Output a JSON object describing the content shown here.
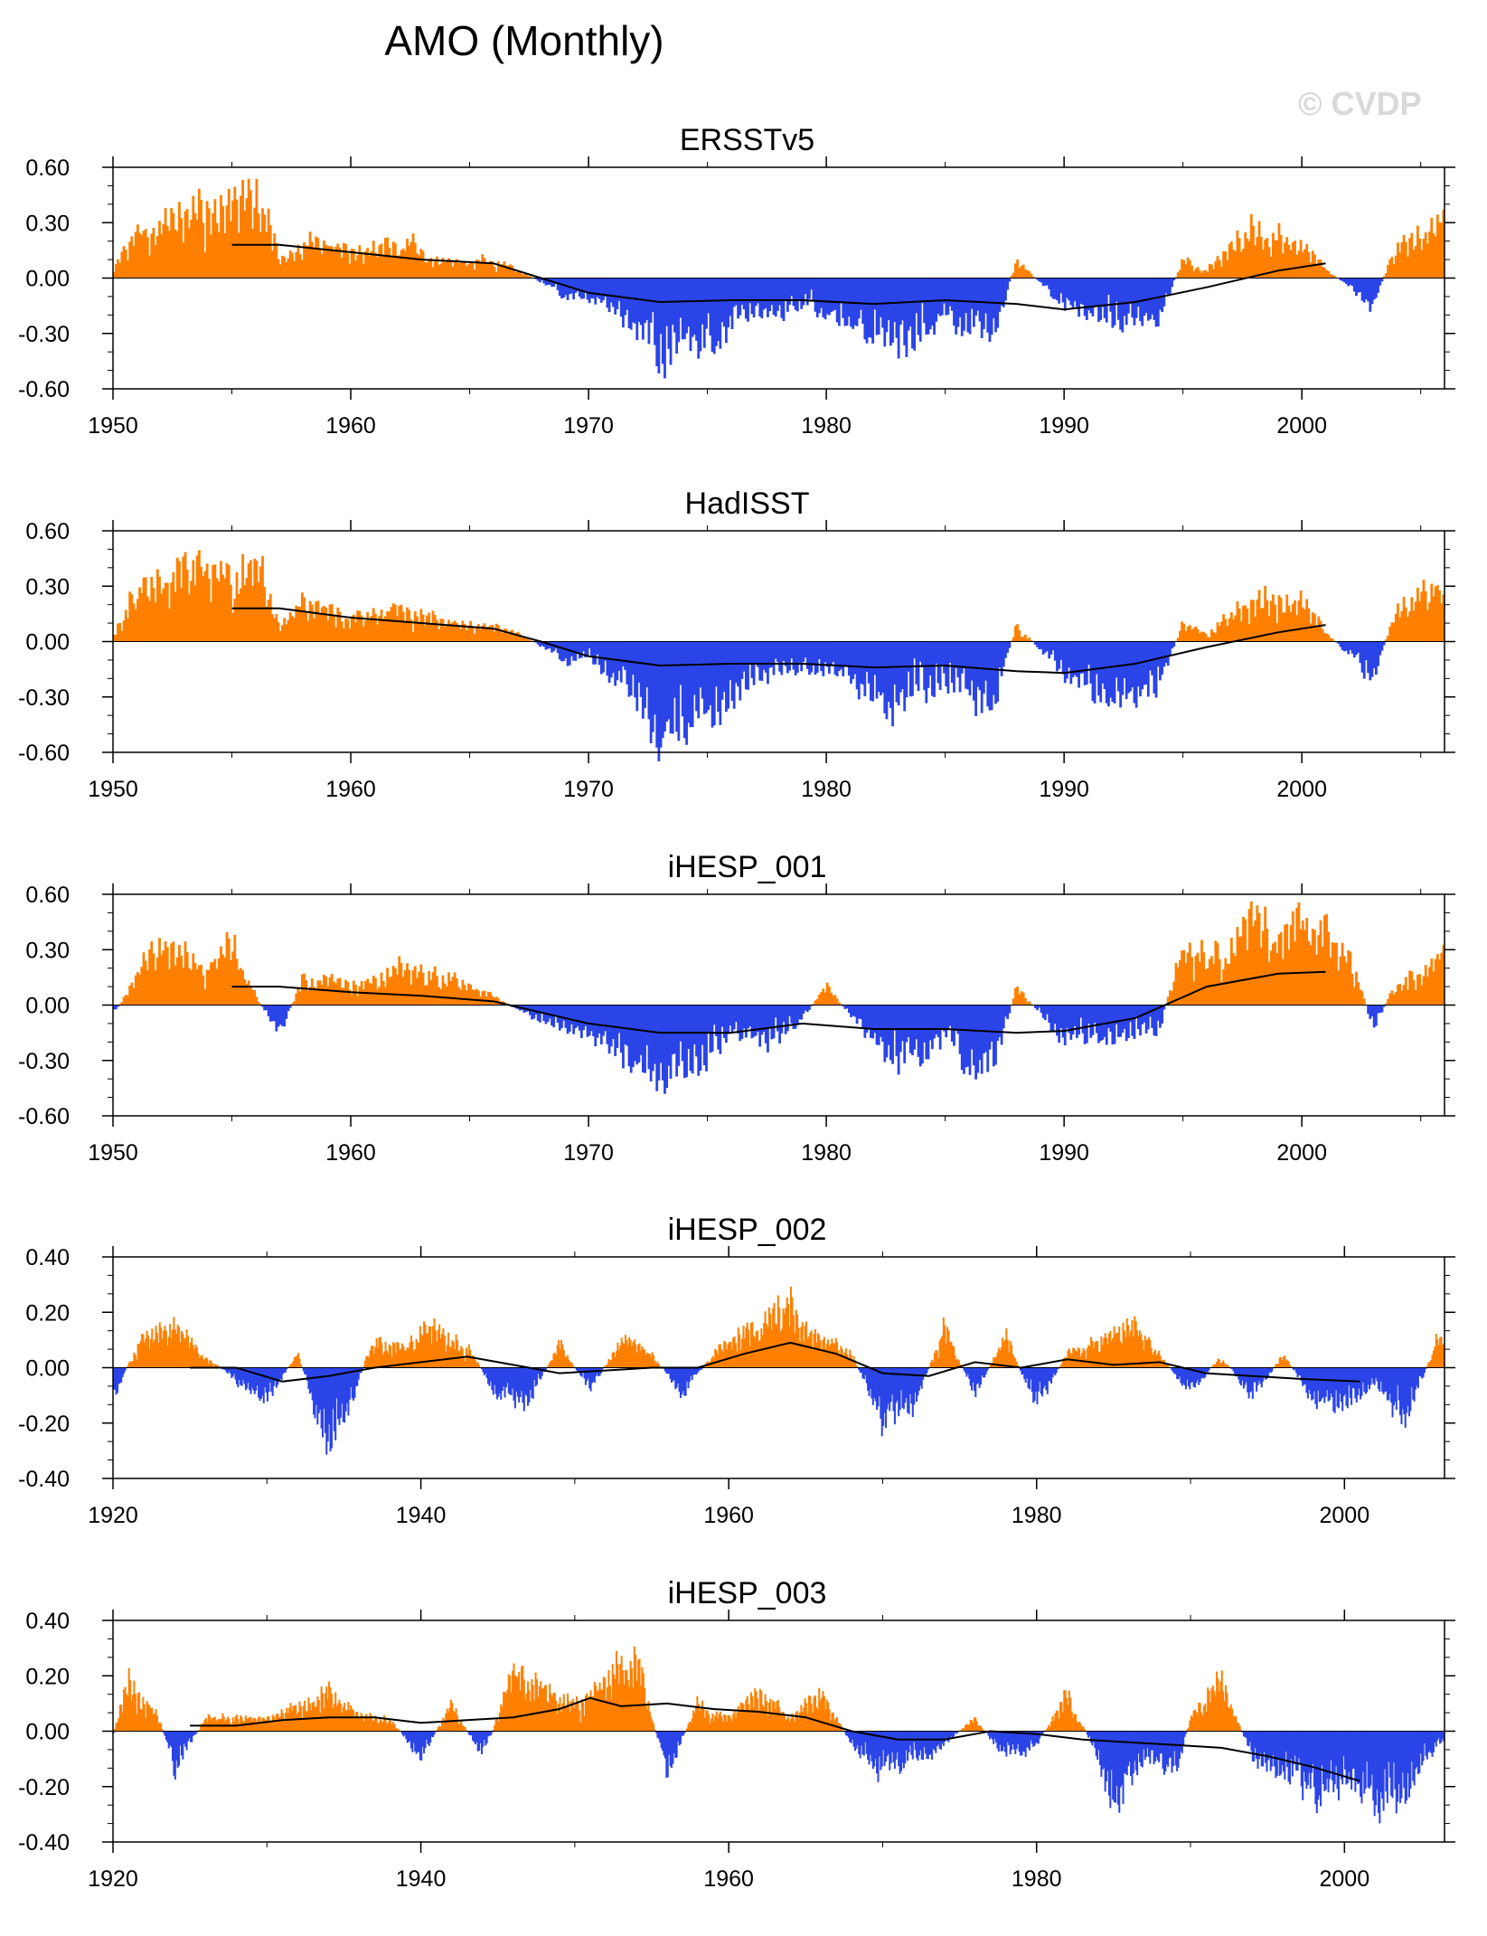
{
  "title": "AMO (Monthly)",
  "watermark": "© CVDP",
  "colors": {
    "positive": "#ff8000",
    "negative": "#2b44e8",
    "line": "#000000",
    "frame": "#000000"
  },
  "chart_data": [
    {
      "type": "area",
      "title": "ERSSTv5",
      "xlim": [
        1950,
        2006
      ],
      "ylim": [
        -0.6,
        0.6
      ],
      "yticks": [
        0.6,
        0.3,
        0.0,
        -0.3,
        -0.6
      ],
      "ytick_labels": [
        "0.60",
        "0.30",
        "0.00",
        "-0.30",
        "-0.60"
      ],
      "xticks": [
        1950,
        1960,
        1970,
        1980,
        1990,
        2000
      ],
      "xtick_labels": [
        "1950",
        "1960",
        "1970",
        "1980",
        "1990",
        "2000"
      ],
      "series_seed": 11,
      "anomaly_envelope": [
        [
          1950,
          0.05
        ],
        [
          1951,
          0.25
        ],
        [
          1953,
          0.35
        ],
        [
          1955,
          0.45
        ],
        [
          1956,
          0.55
        ],
        [
          1957,
          0.1
        ],
        [
          1958,
          0.2
        ],
        [
          1960,
          0.15
        ],
        [
          1962,
          0.2
        ],
        [
          1964,
          0.1
        ],
        [
          1966,
          0.1
        ],
        [
          1967,
          0.05
        ],
        [
          1969,
          -0.1
        ],
        [
          1970,
          -0.1
        ],
        [
          1972,
          -0.25
        ],
        [
          1973,
          -0.45
        ],
        [
          1975,
          -0.35
        ],
        [
          1977,
          -0.2
        ],
        [
          1979,
          -0.15
        ],
        [
          1981,
          -0.2
        ],
        [
          1983,
          -0.4
        ],
        [
          1985,
          -0.2
        ],
        [
          1987,
          -0.3
        ],
        [
          1988,
          0.1
        ],
        [
          1990,
          -0.15
        ],
        [
          1992,
          -0.25
        ],
        [
          1994,
          -0.2
        ],
        [
          1995,
          0.1
        ],
        [
          1996,
          0.05
        ],
        [
          1998,
          0.3
        ],
        [
          2000,
          0.2
        ],
        [
          2001,
          0.05
        ],
        [
          2003,
          -0.15
        ],
        [
          2004,
          0.2
        ],
        [
          2006,
          0.3
        ]
      ],
      "smoothed": {
        "x": [
          1955,
          1957,
          1960,
          1963,
          1966,
          1968,
          1970,
          1973,
          1976,
          1979,
          1982,
          1985,
          1988,
          1990,
          1993,
          1996,
          1999,
          2001
        ],
        "y": [
          0.18,
          0.18,
          0.14,
          0.1,
          0.08,
          0.0,
          -0.08,
          -0.13,
          -0.12,
          -0.12,
          -0.14,
          -0.12,
          -0.14,
          -0.17,
          -0.13,
          -0.05,
          0.04,
          0.08
        ]
      }
    },
    {
      "type": "area",
      "title": "HadISST",
      "xlim": [
        1950,
        2006
      ],
      "ylim": [
        -0.6,
        0.6
      ],
      "yticks": [
        0.6,
        0.3,
        0.0,
        -0.3,
        -0.6
      ],
      "ytick_labels": [
        "0.60",
        "0.30",
        "0.00",
        "-0.30",
        "-0.60"
      ],
      "xticks": [
        1950,
        1960,
        1970,
        1980,
        1990,
        2000
      ],
      "xtick_labels": [
        "1950",
        "1960",
        "1970",
        "1980",
        "1990",
        "2000"
      ],
      "series_seed": 23,
      "anomaly_envelope": [
        [
          1950,
          0.05
        ],
        [
          1951,
          0.3
        ],
        [
          1953,
          0.35
        ],
        [
          1955,
          0.4
        ],
        [
          1956,
          0.5
        ],
        [
          1957,
          0.1
        ],
        [
          1958,
          0.2
        ],
        [
          1960,
          0.15
        ],
        [
          1962,
          0.2
        ],
        [
          1964,
          0.1
        ],
        [
          1966,
          0.1
        ],
        [
          1967,
          0.05
        ],
        [
          1969,
          -0.1
        ],
        [
          1970,
          -0.1
        ],
        [
          1972,
          -0.3
        ],
        [
          1973,
          -0.5
        ],
        [
          1975,
          -0.4
        ],
        [
          1977,
          -0.2
        ],
        [
          1979,
          -0.15
        ],
        [
          1981,
          -0.2
        ],
        [
          1983,
          -0.4
        ],
        [
          1985,
          -0.25
        ],
        [
          1987,
          -0.35
        ],
        [
          1988,
          0.1
        ],
        [
          1990,
          -0.2
        ],
        [
          1992,
          -0.3
        ],
        [
          1994,
          -0.25
        ],
        [
          1995,
          0.1
        ],
        [
          1996,
          0.05
        ],
        [
          1998,
          0.25
        ],
        [
          2000,
          0.25
        ],
        [
          2001,
          0.05
        ],
        [
          2003,
          -0.2
        ],
        [
          2004,
          0.2
        ],
        [
          2006,
          0.3
        ]
      ],
      "smoothed": {
        "x": [
          1955,
          1957,
          1960,
          1963,
          1966,
          1968,
          1970,
          1973,
          1976,
          1979,
          1982,
          1985,
          1988,
          1990,
          1993,
          1996,
          1999,
          2001
        ],
        "y": [
          0.18,
          0.18,
          0.13,
          0.1,
          0.07,
          0.0,
          -0.08,
          -0.13,
          -0.12,
          -0.12,
          -0.14,
          -0.13,
          -0.16,
          -0.17,
          -0.12,
          -0.03,
          0.05,
          0.09
        ]
      }
    },
    {
      "type": "area",
      "title": "iHESP_001",
      "xlim": [
        1950,
        2006
      ],
      "ylim": [
        -0.6,
        0.6
      ],
      "yticks": [
        0.6,
        0.3,
        0.0,
        -0.3,
        -0.6
      ],
      "ytick_labels": [
        "0.60",
        "0.30",
        "0.00",
        "-0.30",
        "-0.60"
      ],
      "xticks": [
        1950,
        1960,
        1970,
        1980,
        1990,
        2000
      ],
      "xtick_labels": [
        "1950",
        "1960",
        "1970",
        "1980",
        "1990",
        "2000"
      ],
      "series_seed": 37,
      "anomaly_envelope": [
        [
          1950,
          -0.05
        ],
        [
          1951,
          0.15
        ],
        [
          1952,
          0.35
        ],
        [
          1954,
          0.2
        ],
        [
          1955,
          0.35
        ],
        [
          1956,
          0.05
        ],
        [
          1957,
          -0.15
        ],
        [
          1958,
          0.15
        ],
        [
          1960,
          0.15
        ],
        [
          1962,
          0.2
        ],
        [
          1964,
          0.15
        ],
        [
          1966,
          0.05
        ],
        [
          1968,
          -0.1
        ],
        [
          1970,
          -0.15
        ],
        [
          1972,
          -0.3
        ],
        [
          1973,
          -0.4
        ],
        [
          1975,
          -0.3
        ],
        [
          1976,
          -0.15
        ],
        [
          1978,
          -0.25
        ],
        [
          1980,
          0.1
        ],
        [
          1982,
          -0.2
        ],
        [
          1983,
          -0.35
        ],
        [
          1985,
          -0.2
        ],
        [
          1987,
          -0.4
        ],
        [
          1988,
          0.1
        ],
        [
          1990,
          -0.2
        ],
        [
          1992,
          -0.2
        ],
        [
          1994,
          -0.15
        ],
        [
          1995,
          0.35
        ],
        [
          1996,
          0.25
        ],
        [
          1998,
          0.45
        ],
        [
          2000,
          0.4
        ],
        [
          2002,
          0.35
        ],
        [
          2003,
          -0.15
        ],
        [
          2004,
          0.15
        ],
        [
          2006,
          0.25
        ]
      ],
      "smoothed": {
        "x": [
          1955,
          1957,
          1960,
          1963,
          1966,
          1968,
          1970,
          1973,
          1976,
          1979,
          1982,
          1985,
          1988,
          1990,
          1993,
          1996,
          1999,
          2001
        ],
        "y": [
          0.1,
          0.1,
          0.07,
          0.05,
          0.02,
          -0.04,
          -0.1,
          -0.15,
          -0.15,
          -0.1,
          -0.13,
          -0.13,
          -0.15,
          -0.14,
          -0.07,
          0.1,
          0.17,
          0.18
        ]
      }
    },
    {
      "type": "area",
      "title": "iHESP_002",
      "xlim": [
        1920,
        2006.5
      ],
      "ylim": [
        -0.4,
        0.4
      ],
      "yticks": [
        0.4,
        0.2,
        0.0,
        -0.2,
        -0.4
      ],
      "ytick_labels": [
        "0.40",
        "0.20",
        "0.00",
        "-0.20",
        "-0.40"
      ],
      "xticks": [
        1920,
        1940,
        1960,
        1980,
        2000
      ],
      "xtick_labels": [
        "1920",
        "1940",
        "1960",
        "1980",
        "2000"
      ],
      "series_seed": 51,
      "anomaly_envelope": [
        [
          1920,
          -0.1
        ],
        [
          1922,
          0.12
        ],
        [
          1924,
          0.15
        ],
        [
          1926,
          0.05
        ],
        [
          1928,
          -0.05
        ],
        [
          1930,
          -0.12
        ],
        [
          1932,
          0.05
        ],
        [
          1934,
          -0.28
        ],
        [
          1935,
          -0.2
        ],
        [
          1937,
          0.12
        ],
        [
          1939,
          0.08
        ],
        [
          1941,
          0.18
        ],
        [
          1943,
          0.08
        ],
        [
          1945,
          -0.1
        ],
        [
          1947,
          -0.12
        ],
        [
          1949,
          0.08
        ],
        [
          1951,
          -0.08
        ],
        [
          1953,
          0.1
        ],
        [
          1955,
          0.05
        ],
        [
          1957,
          -0.1
        ],
        [
          1959,
          0.05
        ],
        [
          1961,
          0.15
        ],
        [
          1963,
          0.2
        ],
        [
          1964,
          0.25
        ],
        [
          1966,
          0.12
        ],
        [
          1968,
          0.05
        ],
        [
          1970,
          -0.2
        ],
        [
          1972,
          -0.15
        ],
        [
          1974,
          0.15
        ],
        [
          1976,
          -0.1
        ],
        [
          1978,
          0.12
        ],
        [
          1980,
          -0.15
        ],
        [
          1982,
          0.05
        ],
        [
          1984,
          0.1
        ],
        [
          1986,
          0.15
        ],
        [
          1988,
          0.05
        ],
        [
          1990,
          -0.1
        ],
        [
          1992,
          0.05
        ],
        [
          1994,
          -0.12
        ],
        [
          1996,
          0.05
        ],
        [
          1998,
          -0.12
        ],
        [
          2000,
          -0.15
        ],
        [
          2002,
          -0.05
        ],
        [
          2004,
          -0.2
        ],
        [
          2006,
          0.1
        ]
      ],
      "smoothed": {
        "x": [
          1925,
          1928,
          1931,
          1934,
          1937,
          1940,
          1943,
          1946,
          1949,
          1952,
          1955,
          1958,
          1961,
          1964,
          1967,
          1970,
          1973,
          1976,
          1979,
          1982,
          1985,
          1988,
          1991,
          1994,
          1997,
          2001
        ],
        "y": [
          0.0,
          0.0,
          -0.05,
          -0.03,
          0.0,
          0.02,
          0.04,
          0.01,
          -0.02,
          -0.01,
          0.0,
          0.0,
          0.05,
          0.09,
          0.05,
          -0.02,
          -0.03,
          0.02,
          0.0,
          0.03,
          0.01,
          0.02,
          -0.02,
          -0.03,
          -0.04,
          -0.05
        ]
      }
    },
    {
      "type": "area",
      "title": "iHESP_003",
      "xlim": [
        1920,
        2006.5
      ],
      "ylim": [
        -0.4,
        0.4
      ],
      "yticks": [
        0.4,
        0.2,
        0.0,
        -0.2,
        -0.4
      ],
      "ytick_labels": [
        "0.40",
        "0.20",
        "0.00",
        "-0.20",
        "-0.40"
      ],
      "xticks": [
        1920,
        1940,
        1960,
        1980,
        2000
      ],
      "xtick_labels": [
        "1920",
        "1940",
        "1960",
        "1980",
        "2000"
      ],
      "series_seed": 67,
      "anomaly_envelope": [
        [
          1920,
          -0.02
        ],
        [
          1921,
          0.2
        ],
        [
          1923,
          0.05
        ],
        [
          1924,
          -0.15
        ],
        [
          1926,
          0.05
        ],
        [
          1928,
          0.05
        ],
        [
          1930,
          0.05
        ],
        [
          1932,
          0.1
        ],
        [
          1934,
          0.15
        ],
        [
          1936,
          0.05
        ],
        [
          1938,
          0.05
        ],
        [
          1940,
          -0.1
        ],
        [
          1942,
          0.1
        ],
        [
          1944,
          -0.1
        ],
        [
          1946,
          0.2
        ],
        [
          1948,
          0.15
        ],
        [
          1950,
          0.1
        ],
        [
          1952,
          0.2
        ],
        [
          1954,
          0.25
        ],
        [
          1956,
          -0.15
        ],
        [
          1958,
          0.1
        ],
        [
          1960,
          0.05
        ],
        [
          1962,
          0.15
        ],
        [
          1964,
          0.05
        ],
        [
          1966,
          0.15
        ],
        [
          1968,
          -0.05
        ],
        [
          1970,
          -0.15
        ],
        [
          1972,
          -0.1
        ],
        [
          1974,
          -0.05
        ],
        [
          1976,
          0.05
        ],
        [
          1978,
          -0.1
        ],
        [
          1980,
          -0.05
        ],
        [
          1982,
          0.15
        ],
        [
          1984,
          -0.1
        ],
        [
          1985,
          -0.3
        ],
        [
          1987,
          -0.1
        ],
        [
          1989,
          -0.15
        ],
        [
          1990,
          0.05
        ],
        [
          1992,
          0.2
        ],
        [
          1994,
          -0.1
        ],
        [
          1996,
          -0.15
        ],
        [
          1998,
          -0.25
        ],
        [
          2000,
          -0.2
        ],
        [
          2002,
          -0.25
        ],
        [
          2004,
          -0.25
        ],
        [
          2006,
          -0.05
        ]
      ],
      "smoothed": {
        "x": [
          1925,
          1928,
          1931,
          1934,
          1937,
          1940,
          1943,
          1946,
          1949,
          1951,
          1953,
          1956,
          1959,
          1962,
          1965,
          1968,
          1971,
          1974,
          1977,
          1980,
          1983,
          1986,
          1989,
          1992,
          1995,
          1998,
          2001
        ],
        "y": [
          0.02,
          0.02,
          0.04,
          0.05,
          0.05,
          0.03,
          0.04,
          0.05,
          0.08,
          0.12,
          0.09,
          0.1,
          0.08,
          0.07,
          0.05,
          0.0,
          -0.03,
          -0.03,
          0.0,
          -0.01,
          -0.03,
          -0.04,
          -0.05,
          -0.06,
          -0.09,
          -0.13,
          -0.18
        ]
      }
    }
  ]
}
